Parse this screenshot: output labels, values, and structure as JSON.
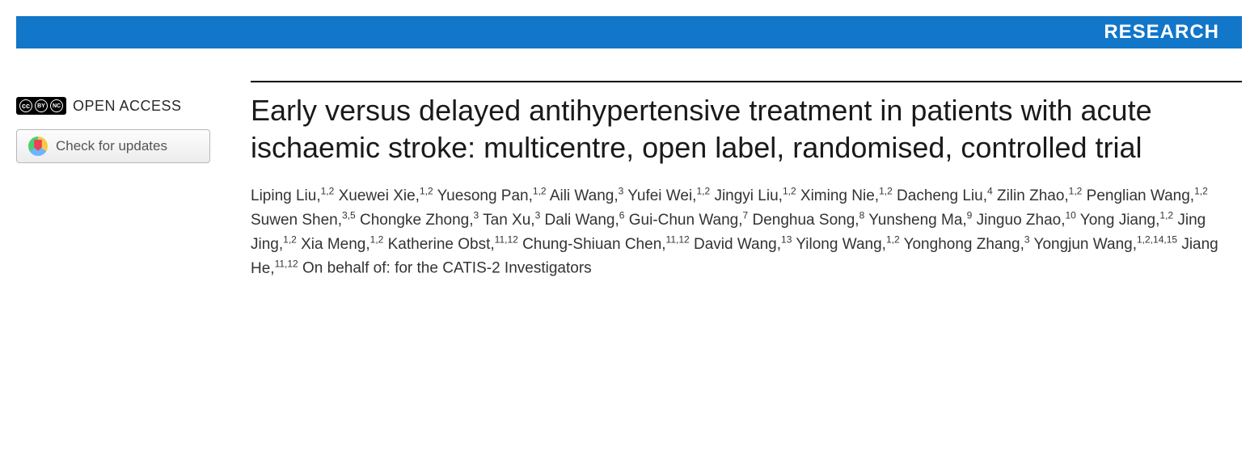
{
  "banner": {
    "label": "RESEARCH",
    "bg_color": "#1276c9",
    "text_color": "#ffffff"
  },
  "sidebar": {
    "open_access_label": "OPEN ACCESS",
    "cc_symbols": [
      "cc",
      "BY",
      "NC"
    ],
    "check_updates_label": "Check for updates"
  },
  "article": {
    "title": "Early versus delayed antihypertensive treatment in patients with acute ischaemic stroke: multicentre, open label, randomised, controlled trial",
    "authors": [
      {
        "name": "Liping Liu",
        "aff": "1,2"
      },
      {
        "name": "Xuewei Xie",
        "aff": "1,2"
      },
      {
        "name": "Yuesong Pan",
        "aff": "1,2"
      },
      {
        "name": "Aili Wang",
        "aff": "3"
      },
      {
        "name": "Yufei Wei",
        "aff": "1,2"
      },
      {
        "name": "Jingyi Liu",
        "aff": "1,2"
      },
      {
        "name": "Ximing Nie",
        "aff": "1,2"
      },
      {
        "name": "Dacheng Liu",
        "aff": "4"
      },
      {
        "name": "Zilin Zhao",
        "aff": "1,2"
      },
      {
        "name": "Penglian Wang",
        "aff": "1,2"
      },
      {
        "name": "Suwen Shen",
        "aff": "3,5"
      },
      {
        "name": "Chongke Zhong",
        "aff": "3"
      },
      {
        "name": "Tan Xu",
        "aff": "3"
      },
      {
        "name": "Dali Wang",
        "aff": "6"
      },
      {
        "name": "Gui-Chun Wang",
        "aff": "7"
      },
      {
        "name": "Denghua Song",
        "aff": "8"
      },
      {
        "name": "Yunsheng Ma",
        "aff": "9"
      },
      {
        "name": "Jinguo Zhao",
        "aff": "10"
      },
      {
        "name": "Yong Jiang",
        "aff": "1,2"
      },
      {
        "name": "Jing Jing",
        "aff": "1,2"
      },
      {
        "name": "Xia Meng",
        "aff": "1,2"
      },
      {
        "name": "Katherine Obst",
        "aff": "11,12"
      },
      {
        "name": "Chung-Shiuan Chen",
        "aff": "11,12"
      },
      {
        "name": "David Wang",
        "aff": "13"
      },
      {
        "name": "Yilong Wang",
        "aff": "1,2"
      },
      {
        "name": "Yonghong Zhang",
        "aff": "3"
      },
      {
        "name": "Yongjun Wang",
        "aff": "1,2,14,15"
      },
      {
        "name": "Jiang He",
        "aff": "11,12"
      }
    ],
    "on_behalf": "On behalf of: for the CATIS-2 Investigators"
  },
  "styling": {
    "title_fontsize": 36,
    "author_fontsize": 19,
    "banner_height": 40,
    "rule_color": "#000000",
    "body_bg": "#ffffff"
  }
}
